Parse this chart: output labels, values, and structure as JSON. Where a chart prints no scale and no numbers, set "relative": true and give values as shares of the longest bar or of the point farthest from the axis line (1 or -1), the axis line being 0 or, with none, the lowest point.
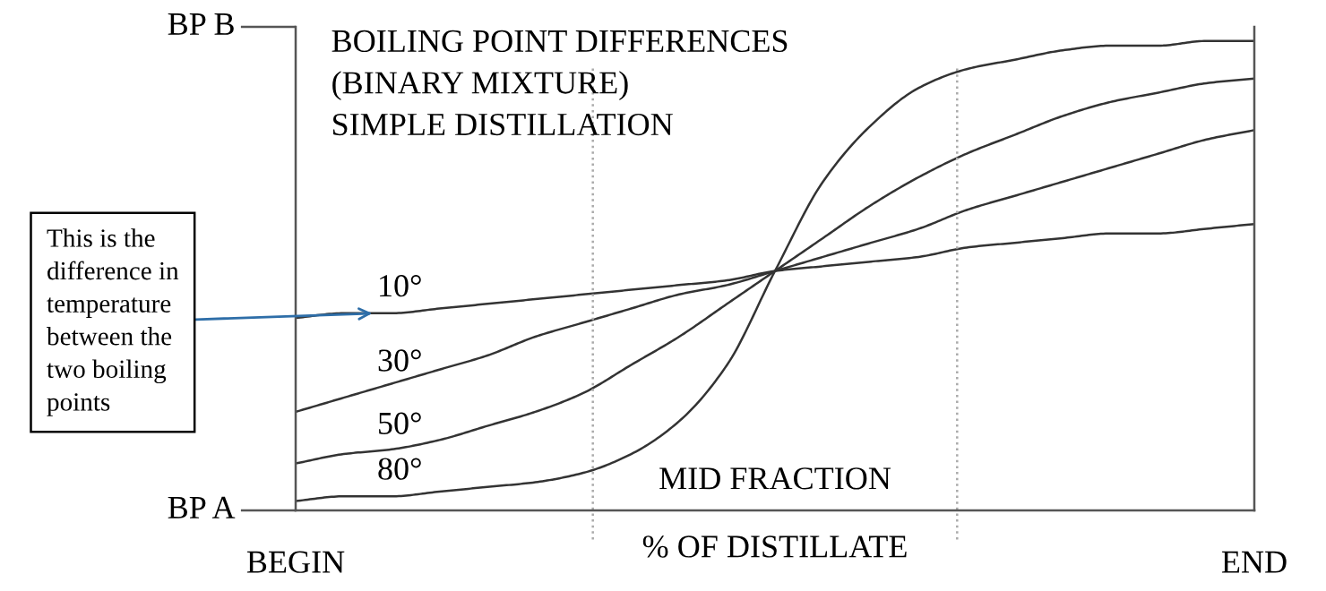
{
  "chart_data": {
    "type": "line",
    "title": "BOILING POINT DIFFERENCES\n(BINARY MIXTURE)\nSIMPLE DISTILLATION",
    "xlabel": "% OF DISTILLATE",
    "categories": [
      "BEGIN",
      null,
      null,
      null,
      null,
      null,
      null,
      null,
      null,
      null,
      null,
      null,
      null,
      null,
      null,
      null,
      null,
      null,
      null,
      null,
      "END"
    ],
    "relative": true,
    "series": [
      {
        "name": "10°",
        "color": "#333333",
        "values": [
          0.41,
          0.42,
          0.42,
          0.43,
          0.44,
          0.45,
          0.46,
          0.47,
          0.48,
          0.49,
          0.51,
          0.52,
          0.53,
          0.54,
          0.56,
          0.57,
          0.58,
          0.59,
          0.59,
          0.6,
          0.61
        ]
      },
      {
        "name": "30°",
        "color": "#333333",
        "values": [
          0.21,
          0.24,
          0.27,
          0.3,
          0.33,
          0.37,
          0.4,
          0.43,
          0.46,
          0.48,
          0.51,
          0.54,
          0.57,
          0.6,
          0.64,
          0.67,
          0.7,
          0.73,
          0.76,
          0.79,
          0.81
        ]
      },
      {
        "name": "50°",
        "color": "#333333",
        "values": [
          0.1,
          0.12,
          0.13,
          0.15,
          0.18,
          0.21,
          0.25,
          0.31,
          0.37,
          0.44,
          0.51,
          0.58,
          0.65,
          0.71,
          0.76,
          0.8,
          0.84,
          0.87,
          0.89,
          0.91,
          0.92
        ]
      },
      {
        "name": "80°",
        "color": "#333333",
        "values": [
          0.02,
          0.03,
          0.03,
          0.04,
          0.05,
          0.06,
          0.08,
          0.12,
          0.19,
          0.31,
          0.51,
          0.7,
          0.82,
          0.9,
          0.94,
          0.96,
          0.98,
          0.99,
          0.99,
          1.0,
          1.0
        ]
      }
    ],
    "tick_labels": "x",
    "annotations": [
      "BP B",
      "BP A",
      "MID FRACTION",
      "This is the\ndifference in\ntemperature\nbetween the\ntwo boiling\npoints"
    ]
  }
}
